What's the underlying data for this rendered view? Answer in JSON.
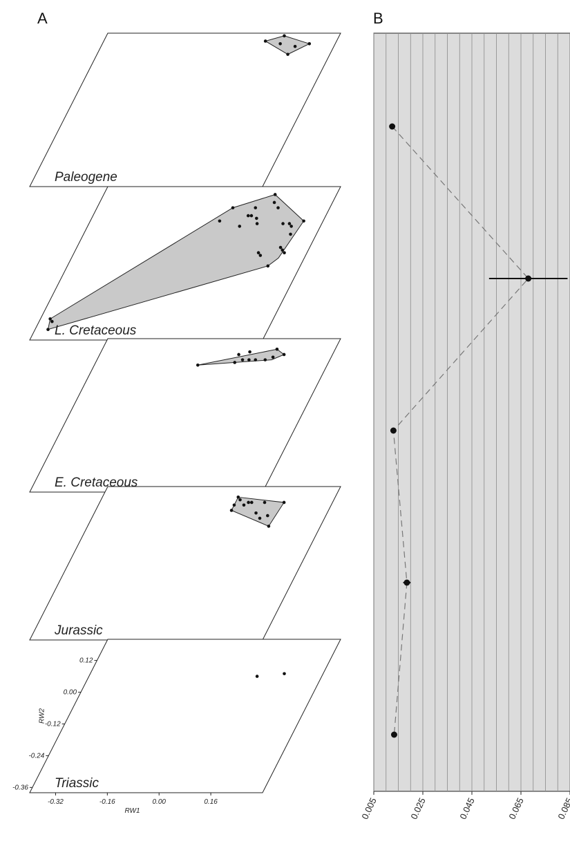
{
  "figure": {
    "panel_a_label": "A",
    "panel_b_label": "B"
  },
  "chart_data": [
    {
      "type": "scatter",
      "panel": "A",
      "xlabel": "RW1",
      "ylabel": "RW2",
      "xticks": [
        "-0.32",
        "-0.16",
        "0.00",
        "0.16"
      ],
      "yticks": [
        "0.12",
        "0.00",
        "-0.12",
        "-0.24",
        "-0.36"
      ],
      "xlim": [
        -0.4,
        0.32
      ],
      "ylim": [
        -0.38,
        0.2
      ],
      "layers": [
        {
          "name": "Paleogene",
          "hull": [
            [
              0.1,
              0.17
            ],
            [
              0.15,
              0.19
            ],
            [
              0.24,
              0.16
            ],
            [
              0.19,
              0.12
            ]
          ],
          "points": [
            [
              0.1,
              0.17
            ],
            [
              0.15,
              0.19
            ],
            [
              0.15,
              0.16
            ],
            [
              0.2,
              0.15
            ],
            [
              0.19,
              0.12
            ],
            [
              0.24,
              0.16
            ]
          ]
        },
        {
          "name": "L.  Cretaceous",
          "hull": [
            [
              -0.36,
              -0.34
            ],
            [
              -0.37,
              -0.3
            ],
            [
              0.02,
              0.12
            ],
            [
              0.13,
              0.17
            ],
            [
              0.26,
              0.07
            ],
            [
              0.24,
              -0.07
            ],
            [
              0.22,
              -0.1
            ]
          ],
          "points": [
            [
              -0.36,
              -0.34
            ],
            [
              -0.37,
              -0.3
            ],
            [
              -0.36,
              -0.31
            ],
            [
              0.02,
              0.12
            ],
            [
              0.09,
              0.12
            ],
            [
              0.08,
              0.09
            ],
            [
              0.09,
              0.09
            ],
            [
              0.11,
              0.08
            ],
            [
              0.13,
              0.17
            ],
            [
              0.14,
              0.14
            ],
            [
              0.16,
              0.12
            ],
            [
              0.0,
              0.07
            ],
            [
              0.07,
              0.05
            ],
            [
              0.12,
              0.06
            ],
            [
              0.2,
              0.06
            ],
            [
              0.22,
              0.06
            ],
            [
              0.23,
              0.05
            ],
            [
              0.24,
              0.02
            ],
            [
              0.23,
              -0.03
            ],
            [
              0.24,
              -0.04
            ],
            [
              0.26,
              0.07
            ],
            [
              0.25,
              -0.05
            ],
            [
              0.17,
              -0.05
            ],
            [
              0.18,
              -0.06
            ],
            [
              0.22,
              -0.1
            ]
          ]
        },
        {
          "name": "E. Cretaceous",
          "hull": [
            [
              -0.08,
              0.1
            ],
            [
              0.14,
              0.16
            ],
            [
              0.17,
              0.14
            ],
            [
              0.14,
              0.12
            ]
          ],
          "points": [
            [
              -0.08,
              0.1
            ],
            [
              0.03,
              0.14
            ],
            [
              0.06,
              0.15
            ],
            [
              0.05,
              0.12
            ],
            [
              0.03,
              0.11
            ],
            [
              0.07,
              0.12
            ],
            [
              0.09,
              0.12
            ],
            [
              0.12,
              0.12
            ],
            [
              0.14,
              0.16
            ],
            [
              0.14,
              0.13
            ],
            [
              0.17,
              0.14
            ]
          ]
        },
        {
          "name": "Jurassic",
          "hull": [
            [
              0.02,
              0.16
            ],
            [
              0.17,
              0.14
            ],
            [
              0.16,
              0.05
            ],
            [
              0.02,
              0.11
            ]
          ],
          "points": [
            [
              0.02,
              0.16
            ],
            [
              0.03,
              0.15
            ],
            [
              0.02,
              0.13
            ],
            [
              0.02,
              0.11
            ],
            [
              0.06,
              0.14
            ],
            [
              0.07,
              0.14
            ],
            [
              0.05,
              0.13
            ],
            [
              0.11,
              0.14
            ],
            [
              0.17,
              0.14
            ],
            [
              0.1,
              0.1
            ],
            [
              0.14,
              0.09
            ],
            [
              0.12,
              0.08
            ],
            [
              0.16,
              0.05
            ]
          ]
        },
        {
          "name": "Triassic",
          "hull": [],
          "points": [
            [
              0.12,
              0.06
            ],
            [
              0.2,
              0.07
            ]
          ]
        }
      ]
    },
    {
      "type": "scatter",
      "panel": "B",
      "xlim": [
        0.005,
        0.085
      ],
      "xticks": [
        "0.005",
        "0.025",
        "0.045",
        "0.065",
        "0.085"
      ],
      "points": [
        {
          "value": 0.0125,
          "err_low": 0.0115,
          "err_high": 0.0135
        },
        {
          "value": 0.068,
          "err_low": 0.052,
          "err_high": 0.084
        },
        {
          "value": 0.013,
          "err_low": 0.012,
          "err_high": 0.014
        },
        {
          "value": 0.0185,
          "err_low": 0.017,
          "err_high": 0.02
        },
        {
          "value": 0.0133,
          "err_low": 0.0125,
          "err_high": 0.014
        }
      ]
    }
  ]
}
